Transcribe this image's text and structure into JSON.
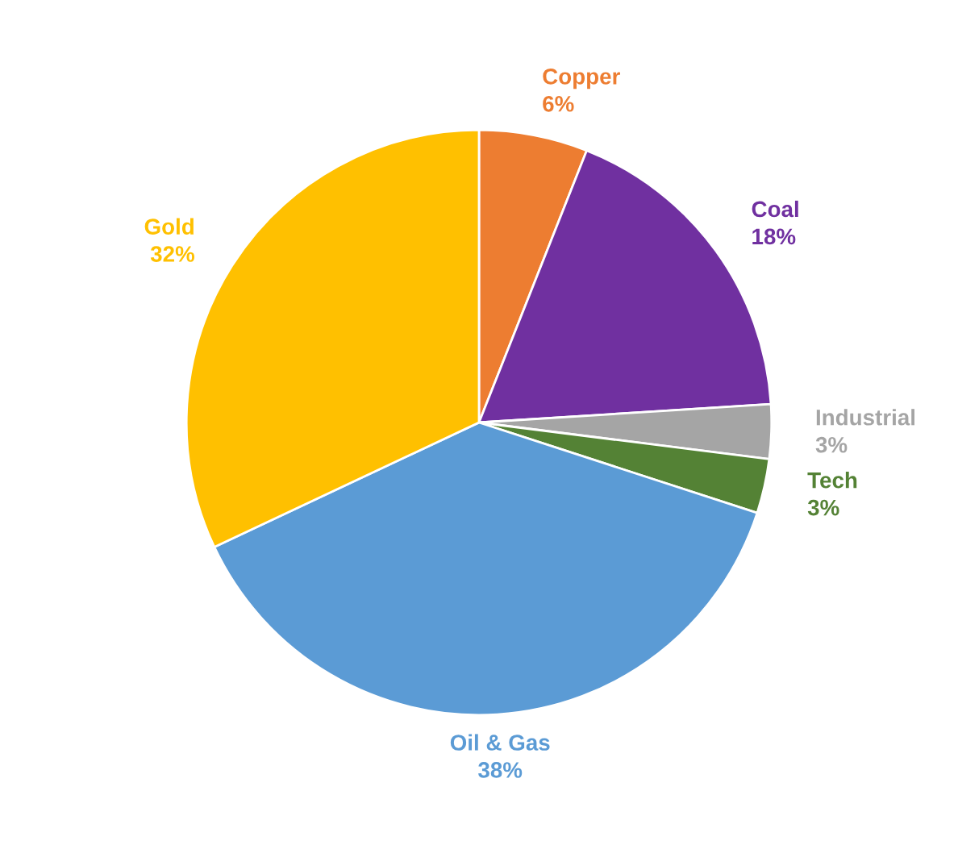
{
  "chart_data": {
    "type": "pie",
    "categories": [
      "Copper",
      "Coal",
      "Industrial",
      "Tech",
      "Oil & Gas",
      "Gold"
    ],
    "values": [
      6,
      18,
      3,
      3,
      38,
      32
    ],
    "colors": [
      "#ed7d31",
      "#7030a0",
      "#a5a5a5",
      "#548235",
      "#5b9bd5",
      "#ffc000"
    ],
    "value_labels": [
      "6%",
      "18%",
      "3%",
      "3%",
      "38%",
      "32%"
    ]
  }
}
